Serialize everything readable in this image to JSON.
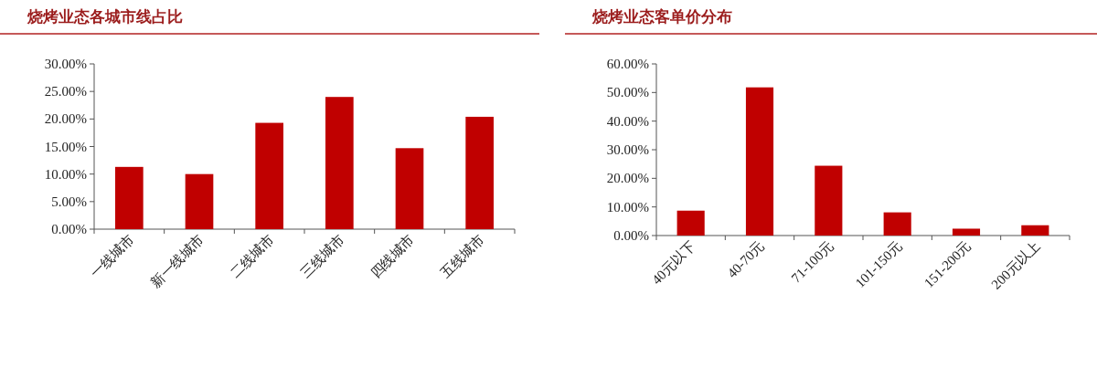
{
  "chart_data": [
    {
      "type": "bar",
      "title": "烧烤业态各城市线占比",
      "categories": [
        "一线城市",
        "新一线城市",
        "二线城市",
        "三线城市",
        "四线城市",
        "五线城市"
      ],
      "values": [
        11.3,
        10.0,
        19.3,
        24.0,
        14.7,
        20.4
      ],
      "color": "#c00000",
      "ylim": [
        0,
        30
      ],
      "yticks": [
        {
          "value": 0,
          "label": "0.00%"
        },
        {
          "value": 5,
          "label": "5.00%"
        },
        {
          "value": 10,
          "label": "10.00%"
        },
        {
          "value": 15,
          "label": "15.00%"
        },
        {
          "value": 20,
          "label": "20.00%"
        },
        {
          "value": 25,
          "label": "25.00%"
        },
        {
          "value": 30,
          "label": "30.00%"
        }
      ]
    },
    {
      "type": "bar",
      "title": "烧烤业态客单价分布",
      "categories": [
        "40元以下",
        "40-70元",
        "71-100元",
        "101-150元",
        "151-200元",
        "200元以上"
      ],
      "values": [
        8.7,
        51.8,
        24.4,
        8.1,
        2.4,
        3.6
      ],
      "color": "#c00000",
      "ylim": [
        0,
        60
      ],
      "yticks": [
        {
          "value": 0,
          "label": "0.00%"
        },
        {
          "value": 10,
          "label": "10.00%"
        },
        {
          "value": 20,
          "label": "20.00%"
        },
        {
          "value": 30,
          "label": "30.00%"
        },
        {
          "value": 40,
          "label": "40.00%"
        },
        {
          "value": 50,
          "label": "50.00%"
        },
        {
          "value": 60,
          "label": "60.00%"
        }
      ]
    }
  ]
}
